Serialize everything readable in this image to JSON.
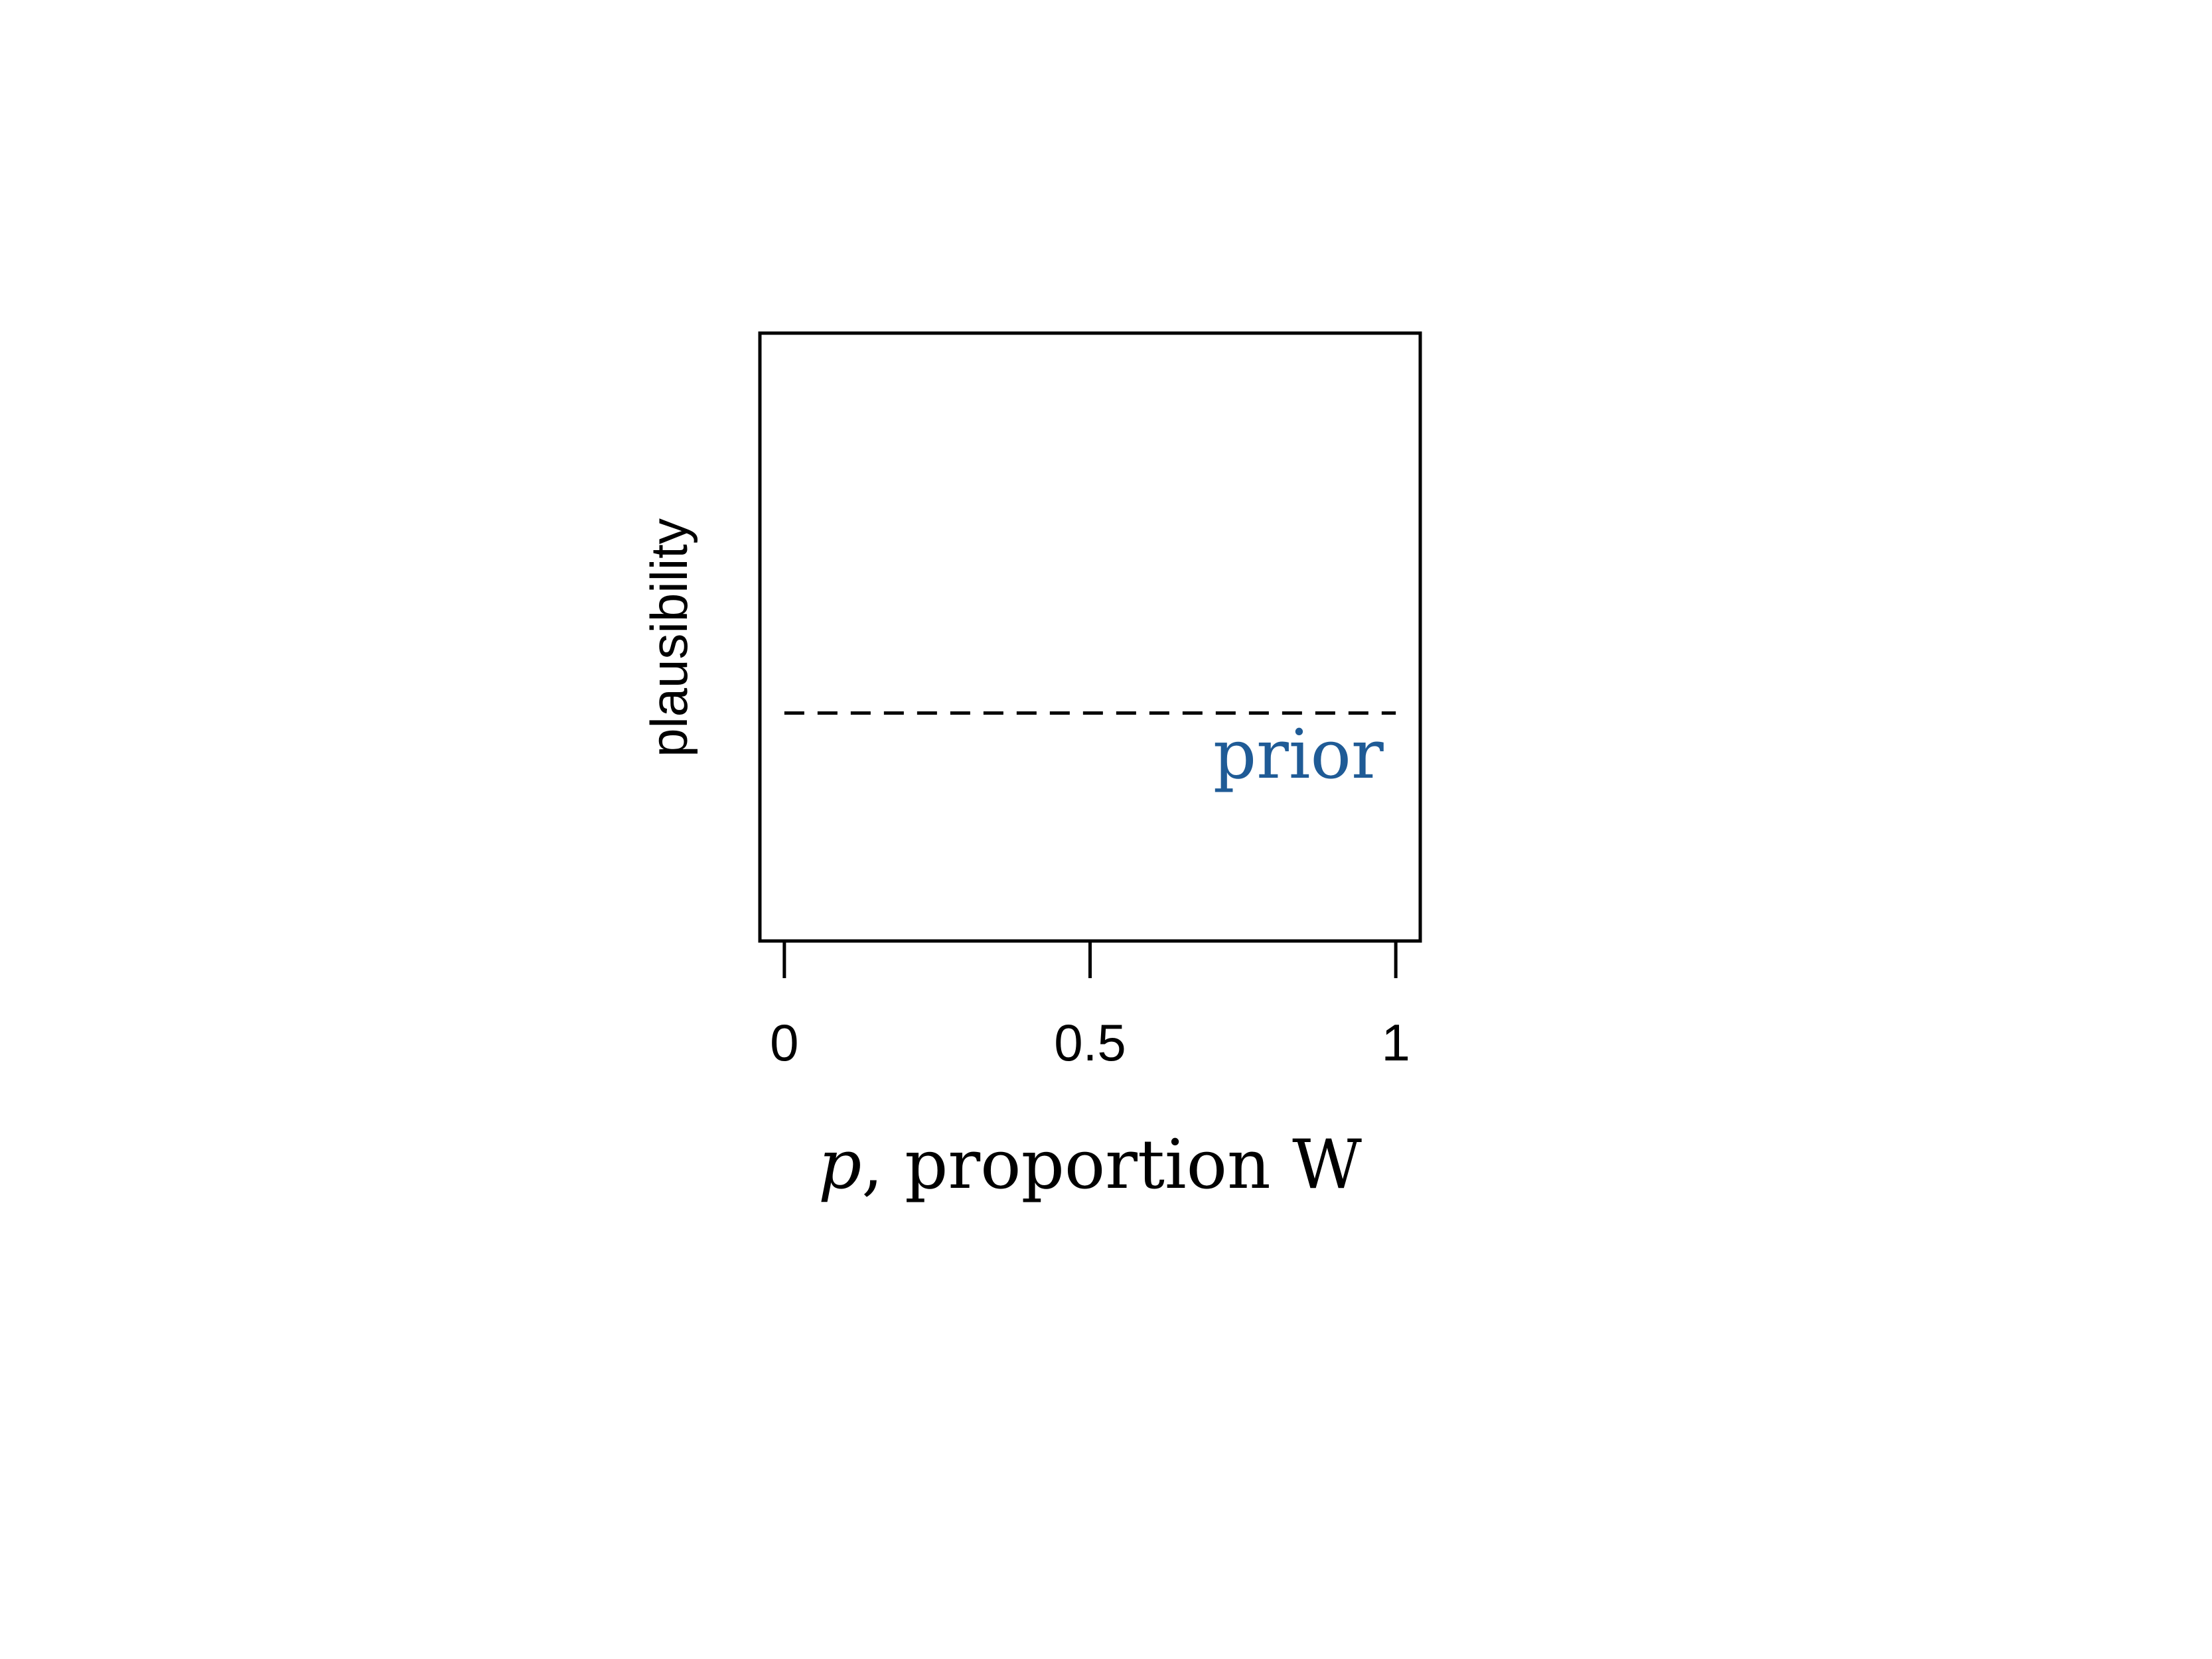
{
  "chart_data": {
    "type": "line",
    "title": "",
    "xlabel": {
      "symbol": "p",
      "text": ", proportion W"
    },
    "ylabel": "plausibility",
    "xlim": [
      -0.04,
      1.04
    ],
    "ylim": [
      0,
      2
    ],
    "x_ticks": [
      0,
      0.5,
      1
    ],
    "x_tick_labels": [
      "0",
      "0.5",
      "1"
    ],
    "grid": false,
    "legend": "none",
    "series": [
      {
        "name": "prior",
        "line_style": "dashed",
        "color": "#000000",
        "label_color": "#1f5b96",
        "x": [
          0,
          1
        ],
        "y": [
          0.75,
          0.75
        ]
      }
    ],
    "annotations": [
      {
        "text": "prior",
        "x": 0.98,
        "y": 0.62,
        "color": "#1f5b96"
      }
    ]
  }
}
